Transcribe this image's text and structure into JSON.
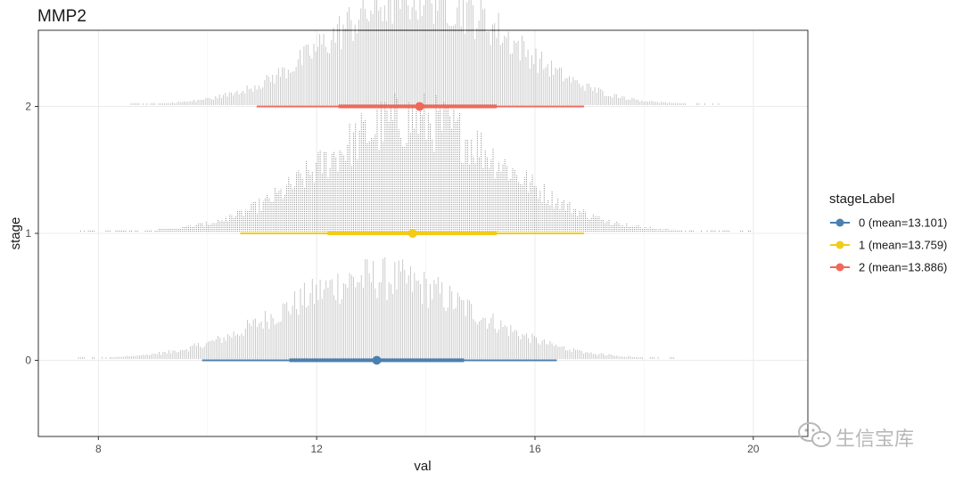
{
  "chart_data": {
    "type": "scatter",
    "subtype": "dotplot-with-pointinterval",
    "title": "MMP2",
    "xlabel": "val",
    "ylabel": "stage",
    "xlim": [
      6.9,
      21.0
    ],
    "ylim": [
      -0.6,
      2.6
    ],
    "x_ticks": [
      "8",
      "12",
      "16",
      "20"
    ],
    "y_ticks": [
      "0",
      "1",
      "2"
    ],
    "grid": true,
    "legend_position": "right",
    "legend_title": "stageLabel",
    "series": [
      {
        "name": "0 (mean=13.101)",
        "stage": 0,
        "color": "#4a7fb0",
        "mean": 13.101,
        "interval_66": [
          11.5,
          14.7
        ],
        "interval_95": [
          9.9,
          16.4
        ],
        "dist_range": [
          7.6,
          18.6
        ],
        "dist_sd": 1.7,
        "dist_peak": 0.65
      },
      {
        "name": "1 (mean=13.759)",
        "stage": 1,
        "color": "#f2cc19",
        "mean": 13.759,
        "interval_66": [
          12.2,
          15.3
        ],
        "interval_95": [
          10.6,
          16.9
        ],
        "dist_range": [
          7.6,
          20.0
        ],
        "dist_sd": 1.65,
        "dist_peak": 0.9
      },
      {
        "name": "2 (mean=13.886)",
        "stage": 2,
        "color": "#f0685a",
        "mean": 13.886,
        "interval_66": [
          12.4,
          15.3
        ],
        "interval_95": [
          10.9,
          16.9
        ],
        "dist_range": [
          8.6,
          19.4
        ],
        "dist_sd": 1.6,
        "dist_peak": 0.9
      }
    ]
  },
  "watermark": {
    "text": "生信宝库"
  }
}
